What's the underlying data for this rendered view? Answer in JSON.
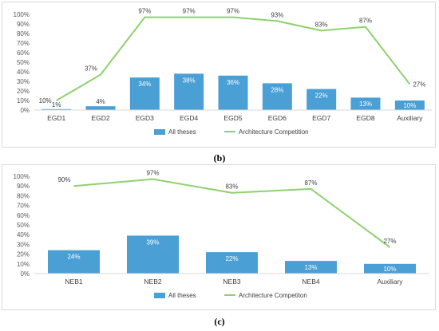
{
  "captions": {
    "b": "(b)",
    "c": "(c)"
  },
  "chart_data": [
    {
      "type": "bar",
      "categories": [
        "EGD1",
        "EGD2",
        "EGD3",
        "EGD4",
        "EGD5",
        "EGD6",
        "EGD7",
        "EGD8",
        "Auxiliary"
      ],
      "series": [
        {
          "name": "All theses",
          "type": "bar",
          "values": [
            1,
            4,
            34,
            38,
            36,
            28,
            22,
            13,
            10
          ],
          "labels": [
            "1%",
            "4%",
            "34%",
            "38%",
            "36%",
            "28%",
            "22%",
            "13%",
            "10%"
          ],
          "color": "#4a9fd4"
        },
        {
          "name": "Architecture Competition",
          "type": "line",
          "values": [
            10,
            37,
            97,
            97,
            97,
            93,
            83,
            87,
            27
          ],
          "labels": [
            "10%",
            "37%",
            "97%",
            "97%",
            "97%",
            "93%",
            "83%",
            "87%",
            "27%"
          ],
          "color": "#8fd16f"
        }
      ],
      "yticks": [
        "0%",
        "10%",
        "20%",
        "30%",
        "40%",
        "50%",
        "60%",
        "70%",
        "80%",
        "90%",
        "100%"
      ],
      "ylim": [
        0,
        100
      ],
      "grid": false,
      "legend": "bottom-center"
    },
    {
      "type": "bar",
      "categories": [
        "NEB1",
        "NEB2",
        "NEB3",
        "NEB4",
        "Auxiliary"
      ],
      "series": [
        {
          "name": "All theses",
          "type": "bar",
          "values": [
            24,
            39,
            22,
            13,
            10
          ],
          "labels": [
            "24%",
            "39%",
            "22%",
            "13%",
            "10%"
          ],
          "color": "#4a9fd4"
        },
        {
          "name": "Architecture Competiton",
          "type": "line",
          "values": [
            90,
            97,
            83,
            87,
            27
          ],
          "labels": [
            "90%",
            "97%",
            "83%",
            "87%",
            "27%"
          ],
          "color": "#8fd16f"
        }
      ],
      "yticks": [
        "0%",
        "10%",
        "20%",
        "30%",
        "40%",
        "50%",
        "60%",
        "70%",
        "80%",
        "90%",
        "100%"
      ],
      "ylim": [
        0,
        100
      ],
      "grid": false,
      "legend": "bottom-center"
    }
  ]
}
